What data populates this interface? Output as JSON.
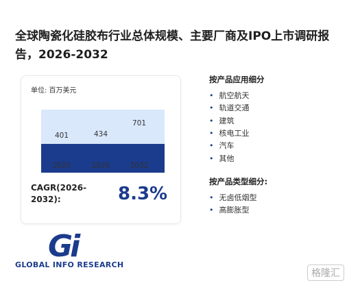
{
  "title": "全球陶瓷化硅胶布行业总体规模、主要厂商及IPO上市调研报告，2026-2032",
  "chart_data": {
    "type": "bar",
    "unit_label": "单位: 百万美元",
    "categories": [
      "2025",
      "2026",
      "2032"
    ],
    "values": [
      401,
      434,
      701
    ],
    "colors": [
      "#d9e8fb",
      "#d9e8fb",
      "#1b3b8c"
    ]
  },
  "cagr": {
    "label": "CAGR(2026-2032):",
    "value": "8.3%"
  },
  "segments": [
    {
      "heading": "按产品应用细分",
      "items": [
        "航空航天",
        "轨道交通",
        "建筑",
        "核电工业",
        "汽车",
        "其他"
      ]
    },
    {
      "heading": "按产品类型细分:",
      "items": [
        "无卤低烟型",
        "高膨胀型"
      ]
    }
  ],
  "logo": {
    "mark": "Gi",
    "text": "GLOBAL INFO RESEARCH"
  },
  "watermark": "格隆汇"
}
